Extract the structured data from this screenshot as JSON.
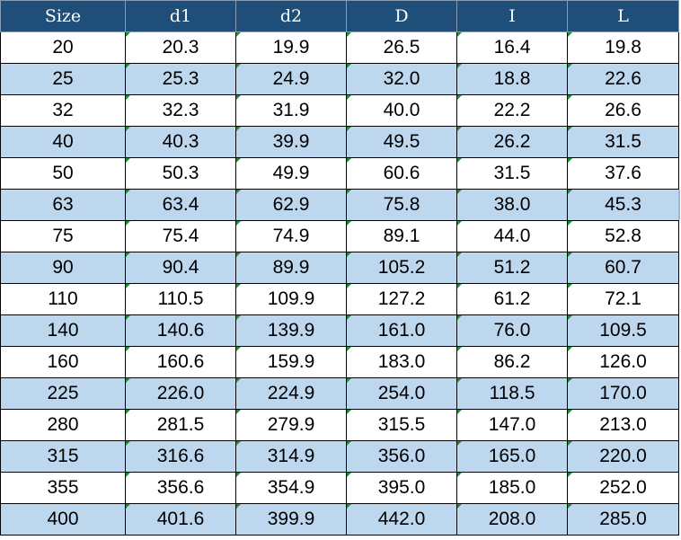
{
  "table": {
    "headers": [
      "Size",
      "d1",
      "d2",
      "D",
      "I",
      "L"
    ],
    "rows": [
      [
        "20",
        "20.3",
        "19.9",
        "26.5",
        "16.4",
        "19.8"
      ],
      [
        "25",
        "25.3",
        "24.9",
        "32.0",
        "18.8",
        "22.6"
      ],
      [
        "32",
        "32.3",
        "31.9",
        "40.0",
        "22.2",
        "26.6"
      ],
      [
        "40",
        "40.3",
        "39.9",
        "49.5",
        "26.2",
        "31.5"
      ],
      [
        "50",
        "50.3",
        "49.9",
        "60.6",
        "31.5",
        "37.6"
      ],
      [
        "63",
        "63.4",
        "62.9",
        "75.8",
        "38.0",
        "45.3"
      ],
      [
        "75",
        "75.4",
        "74.9",
        "89.1",
        "44.0",
        "52.8"
      ],
      [
        "90",
        "90.4",
        "89.9",
        "105.2",
        "51.2",
        "60.7"
      ],
      [
        "110",
        "110.5",
        "109.9",
        "127.2",
        "61.2",
        "72.1"
      ],
      [
        "140",
        "140.6",
        "139.9",
        "161.0",
        "76.0",
        "109.5"
      ],
      [
        "160",
        "160.6",
        "159.9",
        "183.0",
        "86.2",
        "126.0"
      ],
      [
        "225",
        "226.0",
        "224.9",
        "254.0",
        "118.5",
        "170.0"
      ],
      [
        "280",
        "281.5",
        "279.9",
        "315.5",
        "147.0",
        "213.0"
      ],
      [
        "315",
        "316.6",
        "314.9",
        "356.0",
        "165.0",
        "220.0"
      ],
      [
        "355",
        "356.6",
        "354.9",
        "395.0",
        "185.0",
        "252.0"
      ],
      [
        "400",
        "401.6",
        "399.9",
        "442.0",
        "208.0",
        "285.0"
      ]
    ]
  },
  "colors": {
    "header_background": "#1f4e79",
    "header_text": "#ffffff",
    "band_row": "#bdd7ee",
    "plain_row": "#ffffff",
    "error_indicator": "#1a8f2e"
  }
}
